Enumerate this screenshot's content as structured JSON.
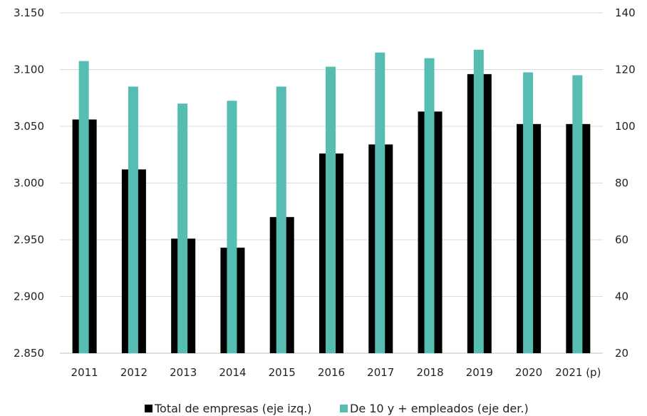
{
  "chart_data": {
    "type": "bar",
    "title": "",
    "xlabel": "",
    "categories": [
      "2011",
      "2012",
      "2013",
      "2014",
      "2015",
      "2016",
      "2017",
      "2018",
      "2019",
      "2020",
      "2021 (p)"
    ],
    "series": [
      {
        "name": "Total de empresas (eje izq.)",
        "axis": "left",
        "color": "#000000",
        "values": [
          3056,
          3012,
          2951,
          2943,
          2970,
          3026,
          3034,
          3063,
          3096,
          3052,
          3052
        ]
      },
      {
        "name": "De 10 y + empleados (eje der.)",
        "axis": "right",
        "color": "#55bdb1",
        "values": [
          123,
          114,
          108,
          109,
          114,
          121,
          126,
          124,
          127,
          119,
          118
        ]
      }
    ],
    "y_left": {
      "lim": [
        2850,
        3150
      ],
      "ticks": [
        2850,
        2900,
        2950,
        3000,
        3050,
        3100,
        3150
      ],
      "tick_labels": [
        "2.850",
        "2.900",
        "2.950",
        "3.000",
        "3.050",
        "3.100",
        "3.150"
      ]
    },
    "y_right": {
      "lim": [
        20,
        140
      ],
      "ticks": [
        20,
        40,
        60,
        80,
        100,
        120,
        140
      ],
      "tick_labels": [
        "20",
        "40",
        "60",
        "80",
        "100",
        "120",
        "140"
      ]
    },
    "grid": true,
    "legend_position": "bottom-center"
  }
}
